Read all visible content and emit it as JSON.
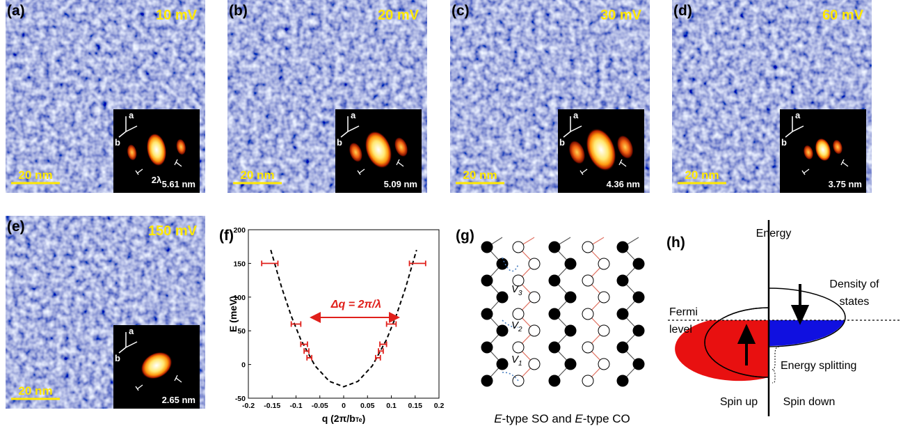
{
  "panels": [
    {
      "label": "(a)",
      "bias": "10 mV",
      "scale": "20 nm",
      "axis_a": "a",
      "axis_b": "b",
      "wavelength": "2λ",
      "period": "5.61 nm"
    },
    {
      "label": "(b)",
      "bias": "20 mV",
      "scale": "20 nm",
      "axis_a": "a",
      "axis_b": "b",
      "period": "5.09 nm"
    },
    {
      "label": "(c)",
      "bias": "30 mV",
      "scale": "20 nm",
      "axis_a": "a",
      "axis_b": "b",
      "period": "4.36 nm"
    },
    {
      "label": "(d)",
      "bias": "60 mV",
      "scale": "20 nm",
      "axis_a": "a",
      "axis_b": "b",
      "period": "3.75 nm"
    },
    {
      "label": "(e)",
      "bias": "150 mV",
      "scale": "20 nm",
      "axis_a": "a",
      "axis_b": "b",
      "period": "2.65 nm"
    }
  ],
  "chart_data": {
    "type": "errorbar",
    "panel_label": "(f)",
    "xlabel": [
      "q (2π/b",
      "Te",
      ")"
    ],
    "ylabel": "E (meV)",
    "x": [
      -0.155,
      -0.1,
      -0.083,
      -0.078,
      -0.072,
      0.072,
      0.078,
      0.083,
      0.1,
      0.155
    ],
    "values": [
      150,
      60,
      30,
      20,
      10,
      10,
      20,
      30,
      60,
      150
    ],
    "xerr": [
      0.017,
      0.01,
      0.007,
      0.005,
      0.005,
      0.005,
      0.005,
      0.007,
      0.01,
      0.017
    ],
    "color": "#e0201b",
    "fit": {
      "x": [
        -0.153,
        -0.13,
        -0.11,
        -0.09,
        -0.06,
        -0.03,
        0,
        0.03,
        0.06,
        0.09,
        0.11,
        0.13,
        0.153
      ],
      "values": [
        170,
        114,
        72,
        37,
        -2,
        -25,
        -33,
        -25,
        -2,
        37,
        72,
        114,
        170
      ]
    },
    "annotation": "Δq = 2π/λ",
    "xlim": [
      -0.2,
      0.2
    ],
    "xticks": [
      -0.2,
      -0.15,
      -0.1,
      -0.05,
      0,
      0.05,
      0.1,
      0.15,
      0.2
    ],
    "ylim": [
      -50,
      200
    ],
    "yticks": [
      -50,
      0,
      50,
      100,
      150,
      200
    ]
  },
  "lattice": {
    "label": "(g)",
    "v1": "V",
    "v1_sub": "1",
    "v2": "V",
    "v2_sub": "2",
    "v3": "V",
    "v3_sub": "3",
    "caption": [
      "E",
      "-type SO and ",
      "E",
      "-type CO"
    ]
  },
  "dos": {
    "label": "(h)",
    "energy": "Energy",
    "density": [
      "Density of",
      "states"
    ],
    "fermi": [
      "Fermi",
      "level"
    ],
    "splitting": "Energy splitting",
    "spin_up": "Spin up",
    "spin_down": "Spin down"
  }
}
